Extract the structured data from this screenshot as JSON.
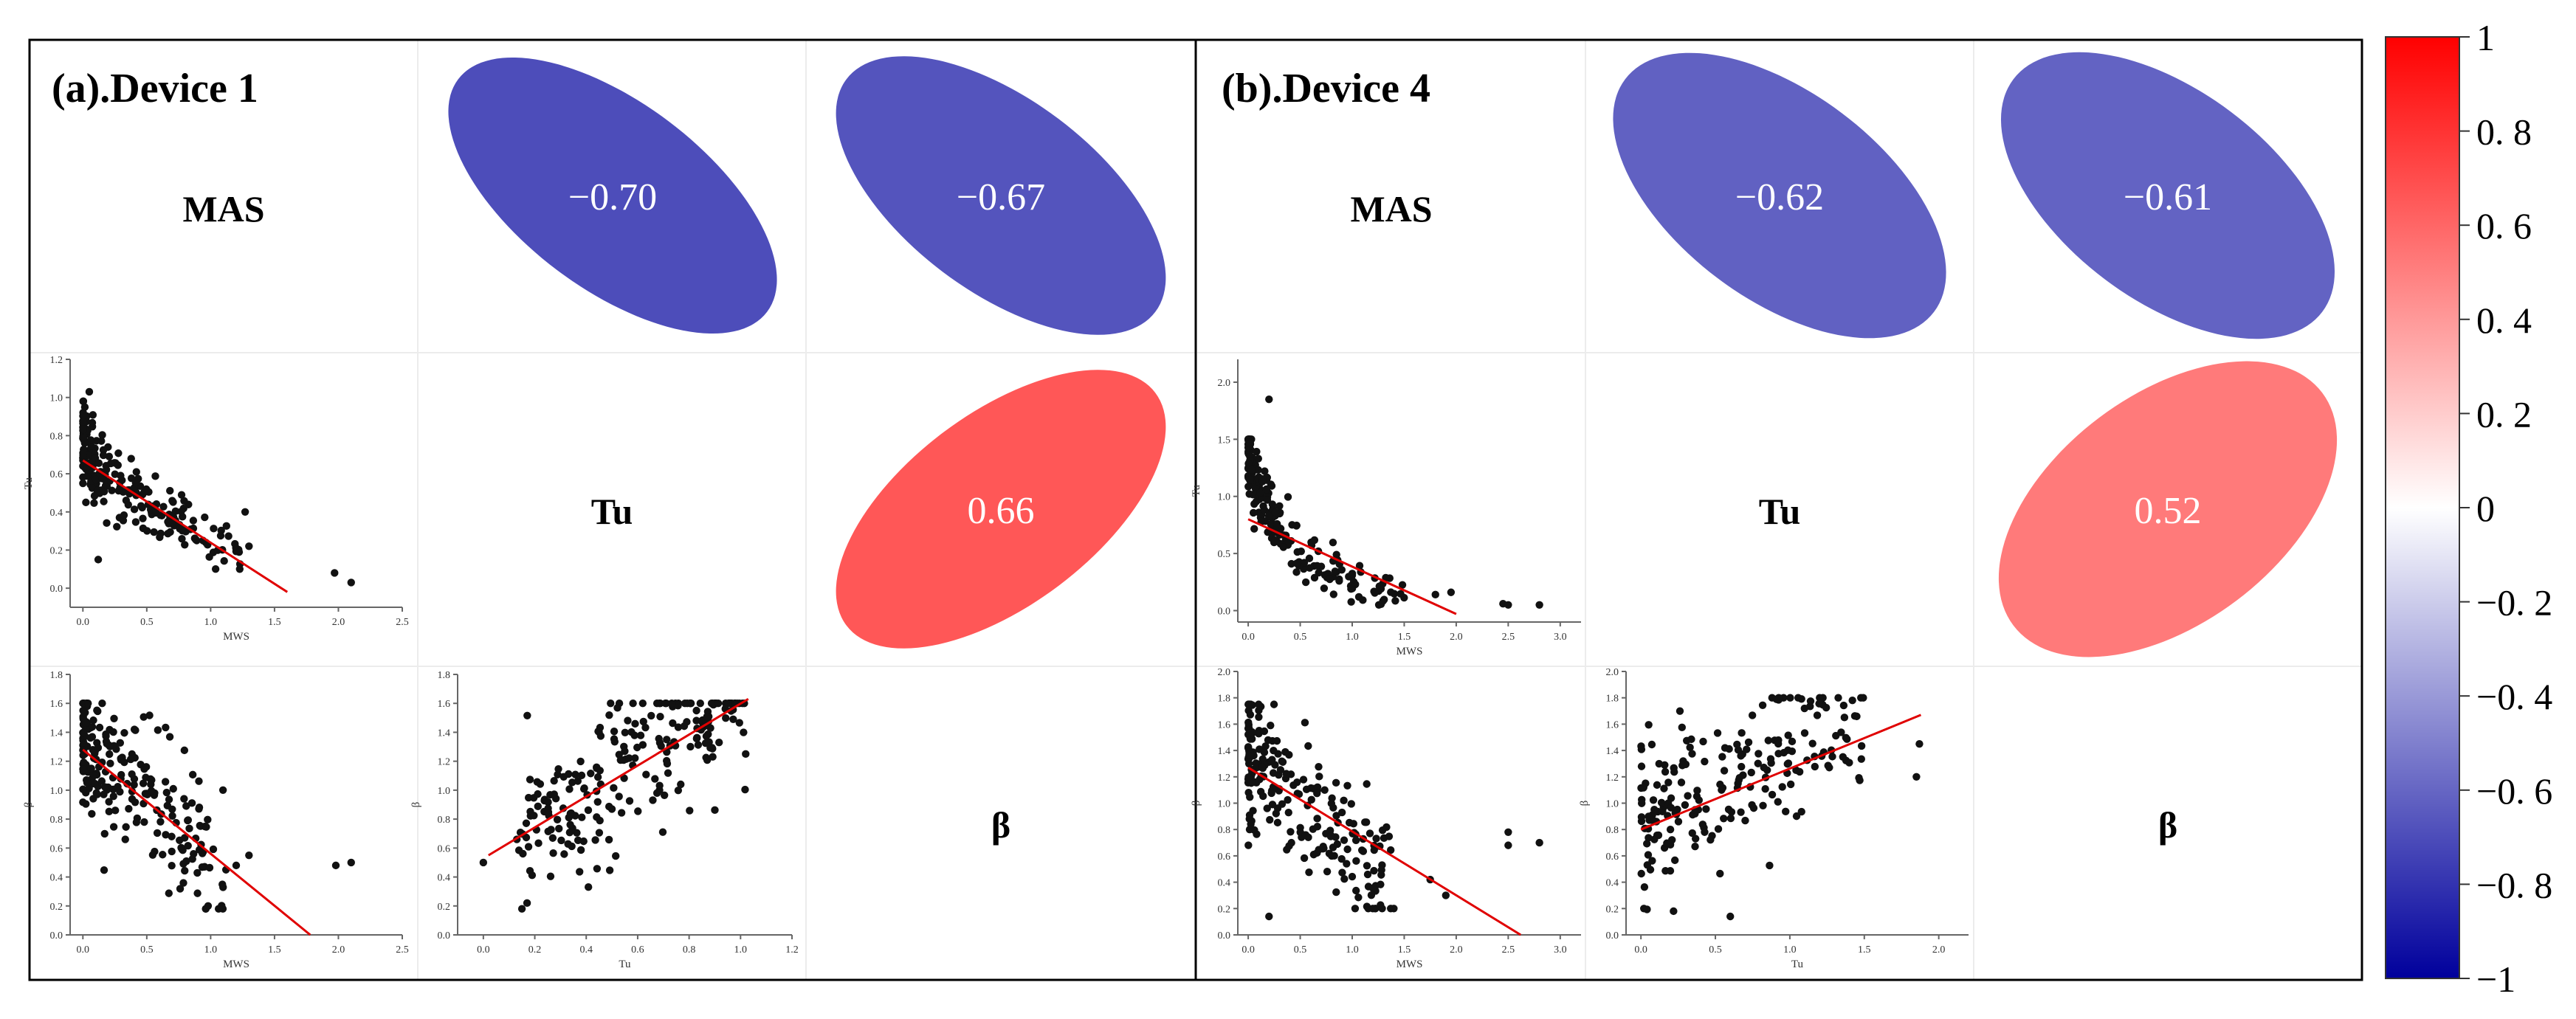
{
  "figure": {
    "panels": [
      {
        "title": "(a).Device 1",
        "variables": [
          "MAS",
          "Tu",
          "β"
        ],
        "correlations": [
          {
            "row": 0,
            "col": 1,
            "value": -0.7,
            "label": "−0.70"
          },
          {
            "row": 0,
            "col": 2,
            "value": -0.67,
            "label": "−0.67"
          },
          {
            "row": 1,
            "col": 2,
            "value": 0.66,
            "label": "0.66"
          }
        ]
      },
      {
        "title": "(b).Device 4",
        "variables": [
          "MAS",
          "Tu",
          "β"
        ],
        "correlations": [
          {
            "row": 0,
            "col": 1,
            "value": -0.62,
            "label": "−0.62"
          },
          {
            "row": 0,
            "col": 2,
            "value": -0.61,
            "label": "−0.61"
          },
          {
            "row": 1,
            "col": 2,
            "value": 0.52,
            "label": "0.52"
          }
        ]
      }
    ],
    "colorbar": {
      "ticks": [
        1,
        0.8,
        0.6,
        0.4,
        0.2,
        0,
        -0.2,
        -0.4,
        -0.6,
        -0.8,
        -1
      ],
      "labels": [
        "1",
        "0. 8",
        "0. 6",
        "0. 4",
        "0. 2",
        "0",
        "−0. 2",
        "−0. 4",
        "−0. 6",
        "−0. 8",
        "−1"
      ],
      "colors": {
        "high": "#ff0000",
        "mid": "#ffffff",
        "low": "#00009c"
      }
    }
  },
  "chart_data": [
    {
      "type": "scatter",
      "panel": "(a).Device 1",
      "xlabel": "MWS",
      "ylabel": "Tu",
      "xlim": [
        -0.1,
        2.5
      ],
      "ylim": [
        -0.1,
        1.2
      ],
      "xticks": [
        0.0,
        0.5,
        1.0,
        1.5,
        2.0,
        2.5
      ],
      "xtick_labels": [
        "0.0",
        "0.5",
        "1.0",
        "1.5",
        "2.0",
        "2.5"
      ],
      "yticks": [
        0.0,
        0.2,
        0.4,
        0.6,
        0.8,
        1.0,
        1.2
      ],
      "ytick_labels": [
        "0.0",
        "0.2",
        "0.4",
        "0.6",
        "0.8",
        "1.0",
        "1.2"
      ],
      "fit": [
        [
          0.0,
          0.67
        ],
        [
          1.6,
          -0.02
        ]
      ],
      "outliers": [
        [
          0.05,
          1.03
        ],
        [
          1.27,
          0.4
        ],
        [
          1.3,
          0.22
        ],
        [
          1.97,
          0.08
        ],
        [
          2.1,
          0.03
        ],
        [
          0.12,
          0.15
        ]
      ],
      "gen": {
        "n": 230,
        "xmin": 0.0,
        "xmax": 1.25,
        "xexp": 2.2,
        "f": "exp",
        "a": 0.72,
        "b": 1.3,
        "c": 0.05,
        "noise": 0.12,
        "seed": 11,
        "clampLo": 0.1,
        "clampHi": 0.98
      }
    },
    {
      "type": "scatter",
      "panel": "(a).Device 1",
      "xlabel": "MWS",
      "ylabel": "β",
      "xlim": [
        -0.1,
        2.5
      ],
      "ylim": [
        0.0,
        1.8
      ],
      "xticks": [
        0.0,
        0.5,
        1.0,
        1.5,
        2.0,
        2.5
      ],
      "xtick_labels": [
        "0.0",
        "0.5",
        "1.0",
        "1.5",
        "2.0",
        "2.5"
      ],
      "yticks": [
        0.0,
        0.2,
        0.4,
        0.6,
        0.8,
        1.0,
        1.2,
        1.4,
        1.6,
        1.8
      ],
      "ytick_labels": [
        "0.0",
        "0.2",
        "0.4",
        "0.6",
        "0.8",
        "1.0",
        "1.2",
        "1.4",
        "1.6",
        "1.8"
      ],
      "fit": [
        [
          0.0,
          1.28
        ],
        [
          1.78,
          0.0
        ]
      ],
      "outliers": [
        [
          0.98,
          0.2
        ],
        [
          1.2,
          0.48
        ],
        [
          1.3,
          0.55
        ],
        [
          1.98,
          0.48
        ],
        [
          2.1,
          0.5
        ],
        [
          1.12,
          0.45
        ]
      ],
      "gen": {
        "n": 230,
        "xmin": 0.0,
        "xmax": 1.1,
        "xexp": 2.0,
        "f": "lin",
        "a": 1.38,
        "b": -0.8,
        "c": 0.0,
        "noise": 0.22,
        "seed": 23,
        "clampLo": 0.18,
        "clampHi": 1.6
      }
    },
    {
      "type": "scatter",
      "panel": "(a).Device 1",
      "xlabel": "Tu",
      "ylabel": "β",
      "xlim": [
        -0.1,
        1.2
      ],
      "ylim": [
        0.0,
        1.8
      ],
      "xticks": [
        0.0,
        0.2,
        0.4,
        0.6,
        0.8,
        1.0,
        1.2
      ],
      "xtick_labels": [
        "0.0",
        "0.2",
        "0.4",
        "0.6",
        "0.8",
        "1.0",
        "1.2"
      ],
      "yticks": [
        0.0,
        0.2,
        0.4,
        0.6,
        0.8,
        1.0,
        1.2,
        1.4,
        1.6,
        1.8
      ],
      "ytick_labels": [
        "0.0",
        "0.2",
        "0.4",
        "0.6",
        "0.8",
        "1.0",
        "1.2",
        "1.4",
        "1.6",
        "1.8"
      ],
      "fit": [
        [
          0.02,
          0.55
        ],
        [
          1.03,
          1.63
        ]
      ],
      "outliers": [
        [
          0.0,
          0.5
        ],
        [
          0.15,
          0.18
        ],
        [
          1.02,
          1.25
        ],
        [
          0.17,
          0.22
        ]
      ],
      "gen": {
        "n": 230,
        "xmin": 0.12,
        "xmax": 1.02,
        "xexp": 1.0,
        "f": "lin",
        "a": 0.55,
        "b": 1.05,
        "c": 0.0,
        "noise": 0.26,
        "seed": 37,
        "clampLo": 0.2,
        "clampHi": 1.6
      }
    },
    {
      "type": "scatter",
      "panel": "(b).Device 4",
      "xlabel": "MWS",
      "ylabel": "Tu",
      "xlim": [
        -0.1,
        3.2
      ],
      "ylim": [
        -0.1,
        2.2
      ],
      "xticks": [
        0.0,
        0.5,
        1.0,
        1.5,
        2.0,
        2.5,
        3.0
      ],
      "xtick_labels": [
        "0.0",
        "0.5",
        "1.0",
        "1.5",
        "2.0",
        "2.5",
        "3.0"
      ],
      "yticks": [
        0.0,
        0.5,
        1.0,
        1.5,
        2.0
      ],
      "ytick_labels": [
        "0.0",
        "0.5",
        "1.0",
        "1.5",
        "2.0"
      ],
      "fit": [
        [
          0.0,
          0.8
        ],
        [
          2.0,
          -0.03
        ]
      ],
      "outliers": [
        [
          0.2,
          1.85
        ],
        [
          1.8,
          0.14
        ],
        [
          1.95,
          0.16
        ],
        [
          2.45,
          0.06
        ],
        [
          2.5,
          0.05
        ],
        [
          2.8,
          0.05
        ]
      ],
      "gen": {
        "n": 220,
        "xmin": 0.0,
        "xmax": 1.5,
        "xexp": 2.2,
        "f": "exp",
        "a": 1.2,
        "b": 2.2,
        "c": 0.12,
        "noise": 0.15,
        "seed": 51,
        "clampLo": 0.05,
        "clampHi": 1.5
      }
    },
    {
      "type": "scatter",
      "panel": "(b).Device 4",
      "xlabel": "MWS",
      "ylabel": "β",
      "xlim": [
        -0.1,
        3.2
      ],
      "ylim": [
        0.0,
        2.0
      ],
      "xticks": [
        0.0,
        0.5,
        1.0,
        1.5,
        2.0,
        2.5,
        3.0
      ],
      "xtick_labels": [
        "0.0",
        "0.5",
        "1.0",
        "1.5",
        "2.0",
        "2.5",
        "3.0"
      ],
      "yticks": [
        0.0,
        0.2,
        0.4,
        0.6,
        0.8,
        1.0,
        1.2,
        1.4,
        1.6,
        1.8,
        2.0
      ],
      "ytick_labels": [
        "0.0",
        "0.2",
        "0.4",
        "0.6",
        "0.8",
        "1.0",
        "1.2",
        "1.4",
        "1.6",
        "1.8",
        "2.0"
      ],
      "fit": [
        [
          0.0,
          1.27
        ],
        [
          2.62,
          0.0
        ]
      ],
      "outliers": [
        [
          0.2,
          0.14
        ],
        [
          1.75,
          0.42
        ],
        [
          1.9,
          0.3
        ],
        [
          2.5,
          0.78
        ],
        [
          2.5,
          0.68
        ],
        [
          2.8,
          0.7
        ],
        [
          1.4,
          0.2
        ]
      ],
      "gen": {
        "n": 230,
        "xmin": 0.0,
        "xmax": 1.4,
        "xexp": 1.9,
        "f": "lin",
        "a": 1.38,
        "b": -0.75,
        "c": 0.0,
        "noise": 0.24,
        "seed": 67,
        "clampLo": 0.2,
        "clampHi": 1.75
      }
    },
    {
      "type": "scatter",
      "panel": "(b).Device 4",
      "xlabel": "Tu",
      "ylabel": "β",
      "xlim": [
        -0.1,
        2.2
      ],
      "ylim": [
        0.0,
        2.0
      ],
      "xticks": [
        0.0,
        0.5,
        1.0,
        1.5,
        2.0
      ],
      "xtick_labels": [
        "0.0",
        "0.5",
        "1.0",
        "1.5",
        "2.0"
      ],
      "yticks": [
        0.0,
        0.2,
        0.4,
        0.6,
        0.8,
        1.0,
        1.2,
        1.4,
        1.6,
        1.8,
        2.0
      ],
      "ytick_labels": [
        "0.0",
        "0.2",
        "0.4",
        "0.6",
        "0.8",
        "1.0",
        "1.2",
        "1.4",
        "1.6",
        "1.8",
        "2.0"
      ],
      "fit": [
        [
          0.0,
          0.8
        ],
        [
          1.88,
          1.67
        ]
      ],
      "outliers": [
        [
          0.6,
          0.14
        ],
        [
          1.85,
          1.2
        ],
        [
          1.87,
          1.45
        ],
        [
          0.02,
          0.2
        ]
      ],
      "gen": {
        "n": 210,
        "xmin": 0.0,
        "xmax": 1.5,
        "xexp": 1.4,
        "f": "lin",
        "a": 0.9,
        "b": 0.5,
        "c": 0.0,
        "noise": 0.27,
        "seed": 83,
        "clampLo": 0.18,
        "clampHi": 1.8
      }
    }
  ]
}
